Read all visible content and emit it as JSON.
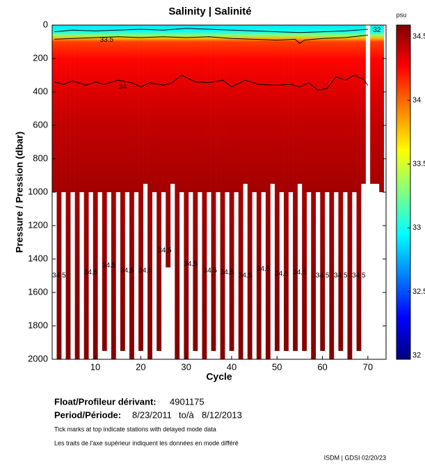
{
  "chart_data": {
    "type": "section",
    "title": "Salinity | Salinité",
    "xlabel": "Cycle",
    "ylabel": "Pressure / Pression (dbar)",
    "xlim": [
      0.5,
      74
    ],
    "xticks": [
      10,
      20,
      30,
      40,
      50,
      60,
      70
    ],
    "ylim": [
      0,
      2000
    ],
    "yticks": [
      0,
      200,
      400,
      600,
      800,
      1000,
      1200,
      1400,
      1600,
      1800,
      2000
    ],
    "colormap": "jet",
    "colorbar_label": "psu",
    "clim": [
      31.97,
      34.59
    ],
    "cticks": [
      32,
      32.5,
      33,
      33.5,
      34,
      34.5
    ],
    "cycles": [
      1,
      2,
      3,
      4,
      5,
      6,
      7,
      8,
      9,
      10,
      11,
      12,
      13,
      14,
      15,
      16,
      17,
      18,
      19,
      20,
      21,
      22,
      23,
      24,
      25,
      26,
      27,
      28,
      29,
      30,
      31,
      32,
      33,
      34,
      35,
      36,
      37,
      38,
      39,
      40,
      41,
      42,
      43,
      44,
      45,
      46,
      47,
      48,
      49,
      50,
      51,
      52,
      53,
      54,
      55,
      56,
      57,
      58,
      59,
      60,
      61,
      62,
      63,
      64,
      65,
      66,
      67,
      68,
      69,
      70,
      71,
      72,
      73
    ],
    "max_pressure": [
      1000,
      2000,
      1000,
      2000,
      1000,
      2000,
      1000,
      2000,
      1000,
      2000,
      1000,
      1950,
      1000,
      2000,
      1000,
      1950,
      1000,
      2000,
      1000,
      1950,
      950,
      2000,
      1000,
      1950,
      1000,
      1450,
      950,
      2000,
      1000,
      2000,
      1000,
      1950,
      1000,
      2000,
      1000,
      1950,
      1000,
      2000,
      1000,
      1950,
      1000,
      2000,
      950,
      2000,
      1000,
      2000,
      1000,
      2000,
      950,
      1950,
      1000,
      1950,
      1000,
      1950,
      950,
      1950,
      1000,
      2000,
      1000,
      1950,
      1000,
      2000,
      1000,
      1950,
      1000,
      2000,
      1000,
      1950,
      950,
      null,
      950,
      950,
      1000
    ],
    "profile": {
      "pressure": [
        0,
        40,
        60,
        80,
        100,
        200,
        400,
        600,
        1000,
        1500,
        2000
      ],
      "salinity": [
        32.9,
        33.0,
        33.3,
        33.8,
        34.1,
        34.25,
        34.35,
        34.42,
        34.5,
        34.55,
        34.58
      ]
    },
    "contours": [
      {
        "x": [
          1,
          5,
          10,
          15,
          20,
          25,
          30,
          35,
          40,
          45,
          50,
          55,
          60,
          65,
          70
        ],
        "pressure": [
          40,
          30,
          35,
          30,
          25,
          30,
          20,
          25,
          30,
          35,
          40,
          45,
          40,
          35,
          25
        ]
      },
      {
        "x": [
          1,
          5,
          10,
          15,
          20,
          25,
          30,
          35,
          40,
          45,
          50,
          54,
          55,
          56,
          58,
          60,
          65,
          70
        ],
        "pressure": [
          85,
          80,
          75,
          70,
          75,
          70,
          75,
          70,
          80,
          85,
          90,
          85,
          110,
          90,
          85,
          80,
          75,
          60
        ]
      },
      {
        "x": [
          1,
          3,
          5,
          8,
          10,
          12,
          15,
          18,
          20,
          22,
          25,
          27,
          29,
          32,
          35,
          38,
          40,
          43,
          46,
          50,
          53,
          55,
          57,
          59,
          61,
          63,
          65,
          67,
          69,
          70
        ],
        "pressure": [
          340,
          355,
          335,
          360,
          340,
          355,
          330,
          345,
          370,
          345,
          360,
          345,
          300,
          340,
          345,
          330,
          370,
          330,
          355,
          360,
          355,
          370,
          345,
          390,
          380,
          310,
          330,
          300,
          325,
          360
        ]
      }
    ],
    "contour_labels": [
      {
        "text": "33.5",
        "x": 12.5,
        "pressure": 88
      },
      {
        "text": "34",
        "x": 16,
        "pressure": 370
      },
      {
        "text": "32",
        "x": 72,
        "pressure": 30
      },
      {
        "text": "34.5",
        "x": 2,
        "pressure": 1500
      },
      {
        "text": "34.5",
        "x": 9,
        "pressure": 1480
      },
      {
        "text": "34.5",
        "x": 13,
        "pressure": 1440
      },
      {
        "text": "34.5",
        "x": 17,
        "pressure": 1470
      },
      {
        "text": "34.5",
        "x": 21,
        "pressure": 1470
      },
      {
        "text": "34.5",
        "x": 25.3,
        "pressure": 1350
      },
      {
        "text": "34.5",
        "x": 31,
        "pressure": 1430
      },
      {
        "text": "34.5",
        "x": 35.3,
        "pressure": 1470
      },
      {
        "text": "34.5",
        "x": 39,
        "pressure": 1480
      },
      {
        "text": "34.5",
        "x": 43,
        "pressure": 1500
      },
      {
        "text": "34.5",
        "x": 47,
        "pressure": 1460
      },
      {
        "text": "34.5",
        "x": 51,
        "pressure": 1490
      },
      {
        "text": "34.5",
        "x": 55,
        "pressure": 1480
      },
      {
        "text": "34.5",
        "x": 60,
        "pressure": 1500
      },
      {
        "text": "34.5",
        "x": 64,
        "pressure": 1500
      },
      {
        "text": "34.5",
        "x": 68,
        "pressure": 1500
      }
    ]
  },
  "footer": {
    "float_label": "Float/Profileur dérivant:",
    "float_id": "4901175",
    "period_label": "Period/Période:",
    "start": "8/23/2011",
    "to": "to/à",
    "end": "8/12/2013",
    "note_en": "Tick marks at top indicate stations with delayed mode data",
    "note_fr": "Les traits de l'axe supérieur indiquent les données en mode différé",
    "credit": "ISDM | GDSI 02/20/23"
  }
}
